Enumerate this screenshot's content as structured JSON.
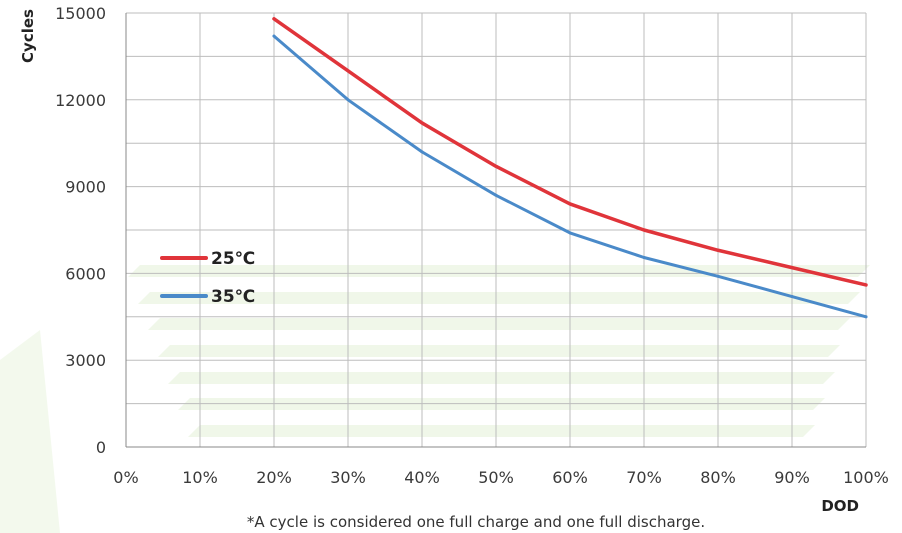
{
  "chart_data": {
    "type": "line",
    "xlabel": "DOD",
    "ylabel": "Cycles",
    "x_ticks": [
      "0%",
      "10%",
      "20%",
      "30%",
      "40%",
      "50%",
      "60%",
      "70%",
      "80%",
      "90%",
      "100%"
    ],
    "y_ticks": [
      "0",
      "3000",
      "6000",
      "9000",
      "12000",
      "15000"
    ],
    "xlim": [
      0,
      100
    ],
    "ylim": [
      0,
      15000
    ],
    "grid": true,
    "legend_position": "left",
    "footnote": "*A cycle is considered one full charge and one full discharge.",
    "x": [
      20,
      30,
      40,
      50,
      60,
      70,
      80,
      90,
      100
    ],
    "series": [
      {
        "name": "25℃",
        "color": "#e0343a",
        "values": [
          14800,
          13000,
          11200,
          9700,
          8400,
          7500,
          6800,
          6200,
          5600
        ]
      },
      {
        "name": "35℃",
        "color": "#4a8ac9",
        "values": [
          14200,
          12000,
          10200,
          8700,
          7400,
          6550,
          5900,
          5200,
          4500
        ]
      }
    ]
  }
}
